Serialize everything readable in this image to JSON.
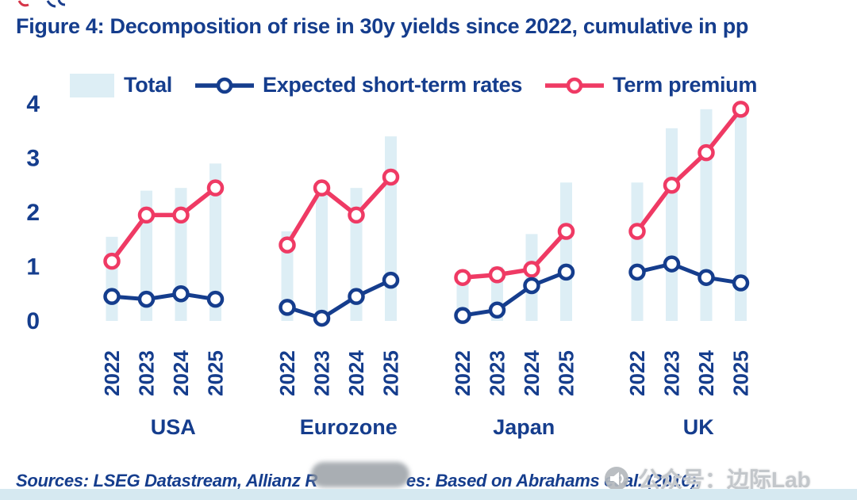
{
  "page": {
    "title": "Figure 4: Decomposition of rise in 30y yields since 2022, cumulative in pp"
  },
  "legend": {
    "total": "Total",
    "expected": "Expected short-term rates",
    "term_premium": "Term premium"
  },
  "colors": {
    "navy": "#153d8d",
    "pink": "#ef3a64",
    "bar": "#ddeef5",
    "strip": "#d6e9f1"
  },
  "sources": {
    "prefix": "Sources: LSEG Datastream, Allianz R",
    "suffix": "es: Based on Abrahams et al. (2016)."
  },
  "watermark": {
    "text": "公众号：边际Lab"
  },
  "chart_data": {
    "type": "bar+line",
    "title": "Decomposition of rise in 30y yields since 2022, cumulative in pp",
    "ylabel": "pp",
    "ylim": [
      0,
      4
    ],
    "yticks": [
      0,
      1,
      2,
      3,
      4
    ],
    "years": [
      "2022",
      "2023",
      "2024",
      "2025"
    ],
    "series_names": {
      "bar": "Total",
      "line1": "Expected short-term rates",
      "line2": "Term premium"
    },
    "groups": [
      {
        "name": "USA",
        "total": [
          1.55,
          2.4,
          2.45,
          2.9
        ],
        "expected": [
          0.45,
          0.4,
          0.5,
          0.4
        ],
        "term_premium": [
          1.1,
          1.95,
          1.95,
          2.45
        ]
      },
      {
        "name": "Eurozone",
        "total": [
          1.65,
          2.5,
          2.45,
          3.4
        ],
        "expected": [
          0.25,
          0.05,
          0.45,
          0.75
        ],
        "term_premium": [
          1.4,
          2.45,
          1.95,
          2.65
        ]
      },
      {
        "name": "Japan",
        "total": [
          0.9,
          1.0,
          1.6,
          2.55
        ],
        "expected": [
          0.1,
          0.2,
          0.65,
          0.9
        ],
        "term_premium": [
          0.8,
          0.85,
          0.95,
          1.65
        ]
      },
      {
        "name": "UK",
        "total": [
          2.55,
          3.55,
          3.9,
          3.95
        ],
        "expected": [
          0.9,
          1.05,
          0.8,
          0.7
        ],
        "term_premium": [
          1.65,
          2.5,
          3.1,
          3.9
        ]
      }
    ],
    "legend_position": "top",
    "grid": false
  }
}
